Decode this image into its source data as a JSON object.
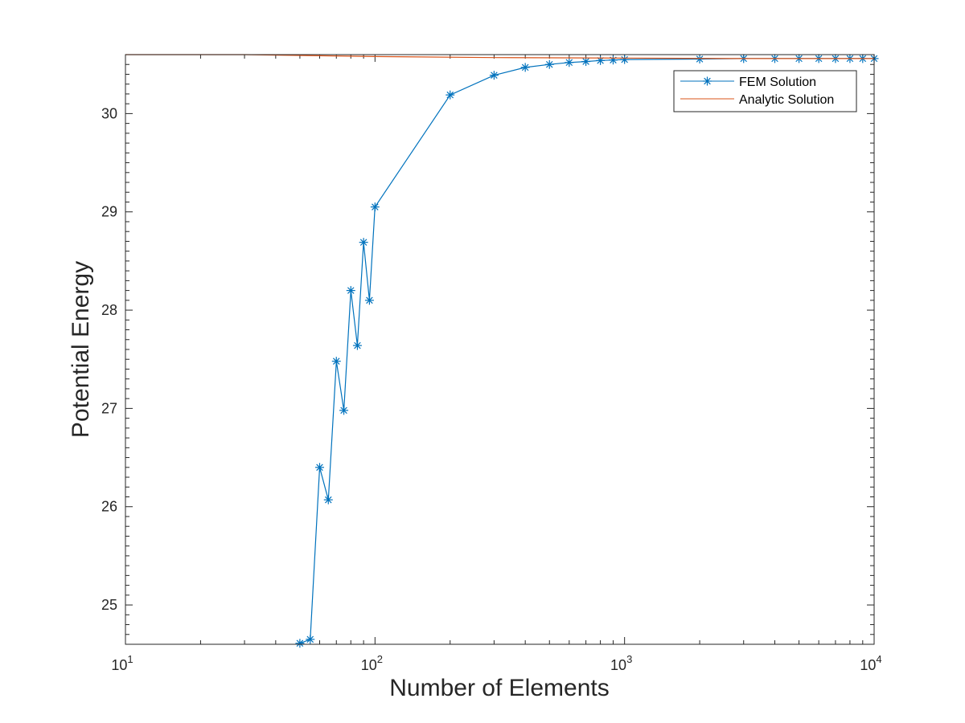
{
  "chart_data": {
    "type": "line",
    "title": "",
    "xlabel": "Number of Elements",
    "ylabel": "Potential Energy",
    "xscale": "log",
    "xlim": [
      10,
      10000
    ],
    "ylim": [
      24.6,
      30.6
    ],
    "grid": false,
    "legend_location": "top-right",
    "x_ticks": [
      {
        "value": 10,
        "base": "10",
        "exp": "1"
      },
      {
        "value": 100,
        "base": "10",
        "exp": "2"
      },
      {
        "value": 1000,
        "base": "10",
        "exp": "3"
      },
      {
        "value": 10000,
        "base": "10",
        "exp": "4"
      }
    ],
    "y_ticks": [
      {
        "value": 25,
        "label": "25"
      },
      {
        "value": 26,
        "label": "26"
      },
      {
        "value": 27,
        "label": "27"
      },
      {
        "value": 28,
        "label": "28"
      },
      {
        "value": 29,
        "label": "29"
      },
      {
        "value": 30,
        "label": "30"
      }
    ],
    "series": [
      {
        "name": "FEM Solution",
        "color": "#0072BD",
        "marker": "asterisk",
        "x": [
          50,
          55,
          60,
          65,
          70,
          75,
          80,
          85,
          90,
          95,
          100,
          200,
          300,
          400,
          500,
          600,
          700,
          800,
          900,
          1000,
          2000,
          3000,
          4000,
          5000,
          6000,
          7000,
          8000,
          9000,
          10000
        ],
        "y": [
          24.61,
          24.65,
          26.4,
          26.07,
          27.48,
          26.98,
          28.2,
          27.64,
          28.69,
          28.1,
          29.05,
          30.19,
          30.39,
          30.47,
          30.5,
          30.52,
          30.53,
          30.54,
          30.545,
          30.55,
          30.555,
          30.56,
          30.56,
          30.56,
          30.56,
          30.56,
          30.56,
          30.56,
          30.56
        ]
      },
      {
        "name": "Analytic Solution",
        "color": "#D95319",
        "marker": "none",
        "x": [
          10,
          30,
          100,
          300,
          1000,
          3000,
          10000
        ],
        "y": [
          30.6,
          30.6,
          30.58,
          30.57,
          30.565,
          30.56,
          30.56
        ]
      }
    ]
  }
}
